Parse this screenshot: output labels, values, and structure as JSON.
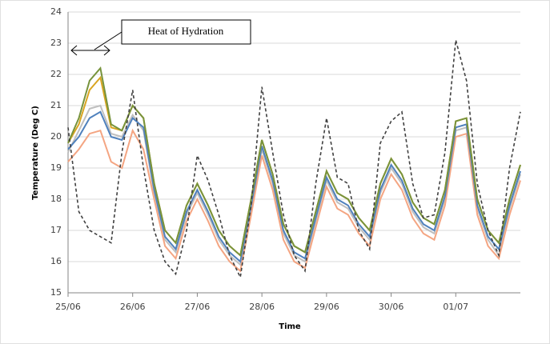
{
  "chart_data": {
    "type": "line",
    "y_label": "Temperature (Deg C)",
    "x_label": "Time",
    "annotation": "Heat of Hydration",
    "categories": [
      "25/06",
      null,
      null,
      null,
      null,
      null,
      "26/06",
      null,
      null,
      null,
      null,
      null,
      "27/06",
      null,
      null,
      null,
      null,
      null,
      "28/06",
      null,
      null,
      null,
      null,
      null,
      "29/06",
      null,
      null,
      null,
      null,
      null,
      "30/06",
      null,
      null,
      null,
      null,
      null,
      "01/07",
      null,
      null,
      null,
      null,
      null,
      null
    ],
    "ylim": [
      15,
      24
    ],
    "yticks": [
      15,
      16,
      17,
      18,
      19,
      20,
      21,
      22,
      23,
      24
    ],
    "grid": true,
    "series": [
      {
        "color": "#bfbfbf",
        "dashed": false,
        "values": [
          19.5,
          20.2,
          20.9,
          21.0,
          20.1,
          20.0,
          20.7,
          20.2,
          18.2,
          16.7,
          16.3,
          17.5,
          18.2,
          17.5,
          16.7,
          16.2,
          15.9,
          17.7,
          19.6,
          18.5,
          16.9,
          16.2,
          16.0,
          17.3,
          18.6,
          17.9,
          17.7,
          17.1,
          16.7,
          18.2,
          19.0,
          18.5,
          17.6,
          17.1,
          16.9,
          18.0,
          20.2,
          20.3,
          17.7,
          16.7,
          16.2,
          17.7,
          18.8
        ]
      },
      {
        "color": "#f4a582",
        "dashed": false,
        "values": [
          19.2,
          19.6,
          20.1,
          20.2,
          19.2,
          19.0,
          20.2,
          19.6,
          18.0,
          16.5,
          16.1,
          17.3,
          18.0,
          17.3,
          16.5,
          16.0,
          15.7,
          17.5,
          19.4,
          18.3,
          16.7,
          16.0,
          15.8,
          17.1,
          18.4,
          17.7,
          17.5,
          16.9,
          16.5,
          18.0,
          18.8,
          18.3,
          17.4,
          16.9,
          16.7,
          17.8,
          20.0,
          20.1,
          17.5,
          16.5,
          16.1,
          17.5,
          18.6
        ]
      },
      {
        "color": "#4f81bd",
        "dashed": false,
        "values": [
          19.6,
          20.0,
          20.6,
          20.8,
          20.0,
          19.9,
          20.6,
          20.3,
          18.3,
          16.8,
          16.4,
          17.6,
          18.3,
          17.6,
          16.8,
          16.3,
          16.0,
          17.8,
          19.7,
          18.6,
          17.0,
          16.3,
          16.1,
          17.4,
          18.7,
          18.0,
          17.8,
          17.2,
          16.8,
          18.3,
          19.1,
          18.6,
          17.7,
          17.2,
          17.0,
          18.1,
          20.3,
          20.4,
          17.8,
          16.8,
          16.4,
          17.8,
          18.9
        ]
      },
      {
        "color": "#d9a521",
        "dashed": false,
        "values": [
          19.8,
          20.4,
          21.5,
          21.9,
          20.3,
          20.2,
          21.0,
          20.6,
          18.5,
          17.0,
          16.6,
          17.8,
          18.5,
          17.8,
          17.0,
          16.5,
          16.2,
          18.0,
          19.9,
          18.8,
          17.2,
          16.5,
          16.3,
          17.6,
          18.9,
          18.2,
          18.0,
          17.4,
          17.0,
          18.5,
          19.3,
          18.8,
          17.9,
          17.4,
          17.2,
          18.3,
          20.5,
          20.6,
          18.0,
          17.0,
          16.6,
          18.0,
          19.1
        ]
      },
      {
        "color": "#77933c",
        "dashed": false,
        "values": [
          19.8,
          20.6,
          21.8,
          22.2,
          20.4,
          20.2,
          21.0,
          20.6,
          18.5,
          17.0,
          16.6,
          17.8,
          18.5,
          17.8,
          17.0,
          16.5,
          16.2,
          18.0,
          19.9,
          18.8,
          17.2,
          16.5,
          16.3,
          17.6,
          18.9,
          18.2,
          18.0,
          17.4,
          17.0,
          18.5,
          19.3,
          18.8,
          17.9,
          17.4,
          17.2,
          18.3,
          20.5,
          20.6,
          18.0,
          17.0,
          16.6,
          18.0,
          19.1
        ]
      },
      {
        "color": "#404040",
        "dashed": true,
        "values": [
          20.3,
          17.6,
          17.0,
          16.8,
          16.6,
          19.5,
          21.5,
          19.0,
          17.0,
          16.0,
          15.6,
          17.0,
          19.4,
          18.6,
          17.5,
          16.2,
          15.5,
          17.8,
          21.6,
          19.5,
          17.5,
          16.2,
          15.7,
          18.5,
          20.6,
          18.7,
          18.5,
          17.0,
          16.4,
          19.8,
          20.5,
          20.8,
          18.5,
          17.4,
          17.5,
          19.5,
          23.1,
          21.8,
          18.5,
          17.0,
          16.2,
          19.0,
          20.8
        ]
      }
    ]
  }
}
